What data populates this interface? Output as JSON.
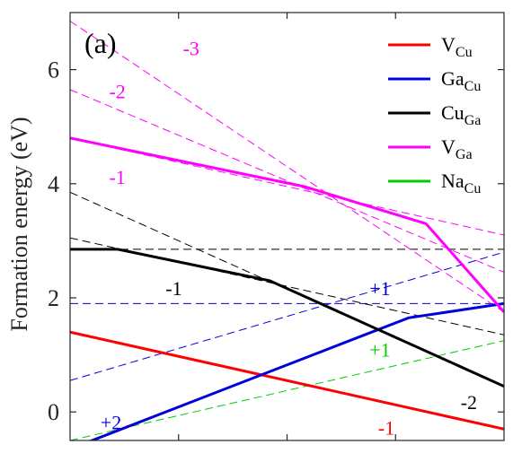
{
  "chart_data": {
    "type": "line",
    "panel_label": "(a)",
    "title": "",
    "xlabel": "",
    "ylabel": "Formation energy (eV)",
    "xlim": [
      0,
      1
    ],
    "ylim": [
      -0.5,
      7.0
    ],
    "x_ticks": [
      0.25,
      0.5,
      0.75
    ],
    "x_ticklabels_shown": false,
    "y_ticks": [
      0,
      2,
      4,
      6
    ],
    "y_ticklabels": [
      "0",
      "2",
      "4",
      "6"
    ],
    "grid": false,
    "legend_position": "top-right",
    "legend": [
      {
        "base": "V",
        "sub": "Cu",
        "color": "#ff0000"
      },
      {
        "base": "Ga",
        "sub": "Cu",
        "color": "#0000dd"
      },
      {
        "base": "Cu",
        "sub": "Ga",
        "color": "#000000"
      },
      {
        "base": "V",
        "sub": "Ga",
        "color": "#ff00ff"
      },
      {
        "base": "Na",
        "sub": "Cu",
        "color": "#00cc00"
      }
    ],
    "series": [
      {
        "name": "VCu",
        "color": "#ff0000",
        "style": "solid",
        "x": [
          0,
          1
        ],
        "y": [
          1.4,
          -0.3
        ]
      },
      {
        "name": "GaCu",
        "color": "#0000dd",
        "style": "solid",
        "x": [
          0,
          0.78,
          1
        ],
        "y": [
          -0.65,
          1.65,
          1.9
        ]
      },
      {
        "name": "CuGa",
        "color": "#000000",
        "style": "solid",
        "x": [
          0,
          0.11,
          0.46,
          1
        ],
        "y": [
          2.85,
          2.85,
          2.3,
          0.45
        ]
      },
      {
        "name": "VGa",
        "color": "#ff00ff",
        "style": "solid",
        "x": [
          0,
          0.54,
          0.82,
          1
        ],
        "y": [
          4.8,
          3.95,
          3.3,
          1.75
        ]
      },
      {
        "name": "NaCu",
        "color": "#00cc00",
        "style": "solid",
        "x": [
          0,
          1
        ],
        "y": [
          -0.85,
          -0.85
        ]
      },
      {
        "name": "GaCu +1",
        "color": "#0000dd",
        "style": "dashed",
        "x": [
          0,
          1
        ],
        "y": [
          1.9,
          1.9
        ]
      },
      {
        "name": "GaCu +2",
        "color": "#0000dd",
        "style": "dashed",
        "x": [
          0,
          1
        ],
        "y": [
          0.55,
          2.8
        ]
      },
      {
        "name": "CuGa 0",
        "color": "#000000",
        "style": "dashed",
        "x": [
          0,
          1
        ],
        "y": [
          2.85,
          2.85
        ]
      },
      {
        "name": "CuGa -1",
        "color": "#000000",
        "style": "dashed",
        "x": [
          0,
          1
        ],
        "y": [
          3.05,
          1.35
        ]
      },
      {
        "name": "CuGa -2",
        "color": "#000000",
        "style": "dashed",
        "x": [
          0,
          1
        ],
        "y": [
          3.85,
          0.45
        ]
      },
      {
        "name": "VGa -2",
        "color": "#ff00ff",
        "style": "dashed",
        "x": [
          0,
          1
        ],
        "y": [
          5.65,
          2.45
        ]
      },
      {
        "name": "VGa -3",
        "color": "#ff00ff",
        "style": "dashed",
        "x": [
          0,
          1
        ],
        "y": [
          6.85,
          1.75
        ]
      },
      {
        "name": "VGa -1",
        "color": "#ff00ff",
        "style": "dashed",
        "x": [
          0,
          1
        ],
        "y": [
          4.8,
          3.1
        ]
      },
      {
        "name": "NaCu +1",
        "color": "#00cc00",
        "style": "dashed",
        "x": [
          0,
          1
        ],
        "y": [
          -0.5,
          1.25
        ]
      }
    ],
    "annotations": [
      {
        "text": "-3",
        "color": "#ff00ff",
        "x": 0.26,
        "y": 6.25
      },
      {
        "text": "-2",
        "color": "#ff00ff",
        "x": 0.09,
        "y": 5.5
      },
      {
        "text": "-1",
        "color": "#ff00ff",
        "x": 0.09,
        "y": 4.0
      },
      {
        "text": "-1",
        "color": "#000000",
        "x": 0.22,
        "y": 2.05
      },
      {
        "text": "+1",
        "color": "#0000dd",
        "x": 0.69,
        "y": 2.05
      },
      {
        "text": "+1",
        "color": "#00cc00",
        "x": 0.69,
        "y": 0.97
      },
      {
        "text": "-2",
        "color": "#000000",
        "x": 0.9,
        "y": 0.05
      },
      {
        "text": "-1",
        "color": "#ff0000",
        "x": 0.71,
        "y": -0.4
      },
      {
        "text": "+2",
        "color": "#0000dd",
        "x": 0.07,
        "y": -0.3
      }
    ]
  }
}
